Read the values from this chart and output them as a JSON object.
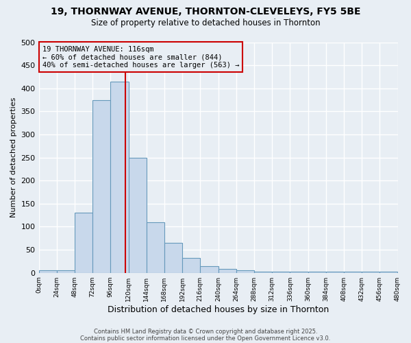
{
  "title": "19, THORNWAY AVENUE, THORNTON-CLEVELEYS, FY5 5BE",
  "subtitle": "Size of property relative to detached houses in Thornton",
  "xlabel": "Distribution of detached houses by size in Thornton",
  "ylabel": "Number of detached properties",
  "bar_values": [
    5,
    5,
    130,
    375,
    415,
    250,
    110,
    65,
    33,
    15,
    8,
    5,
    3,
    2,
    2,
    2,
    2,
    2,
    2,
    3
  ],
  "bin_edges": [
    0,
    24,
    48,
    72,
    96,
    120,
    144,
    168,
    192,
    216,
    240,
    264,
    288,
    312,
    336,
    360,
    384,
    408,
    432,
    456,
    480
  ],
  "bar_color": "#c8d8eb",
  "bar_edge_color": "#6699bb",
  "red_line_x": 116,
  "annotation_line1": "19 THORNWAY AVENUE: 116sqm",
  "annotation_line2": "← 60% of detached houses are smaller (844)",
  "annotation_line3": "40% of semi-detached houses are larger (563) →",
  "annotation_box_color": "#cc0000",
  "annotation_text_color": "#000000",
  "ylim": [
    0,
    500
  ],
  "yticks": [
    0,
    50,
    100,
    150,
    200,
    250,
    300,
    350,
    400,
    450,
    500
  ],
  "xtick_labels": [
    "0sqm",
    "24sqm",
    "48sqm",
    "72sqm",
    "96sqm",
    "120sqm",
    "144sqm",
    "168sqm",
    "192sqm",
    "216sqm",
    "240sqm",
    "264sqm",
    "288sqm",
    "312sqm",
    "336sqm",
    "360sqm",
    "384sqm",
    "408sqm",
    "432sqm",
    "456sqm",
    "480sqm"
  ],
  "bg_color": "#e8eef4",
  "grid_color": "#ffffff",
  "footer_line1": "Contains HM Land Registry data © Crown copyright and database right 2025.",
  "footer_line2": "Contains public sector information licensed under the Open Government Licence v3.0."
}
